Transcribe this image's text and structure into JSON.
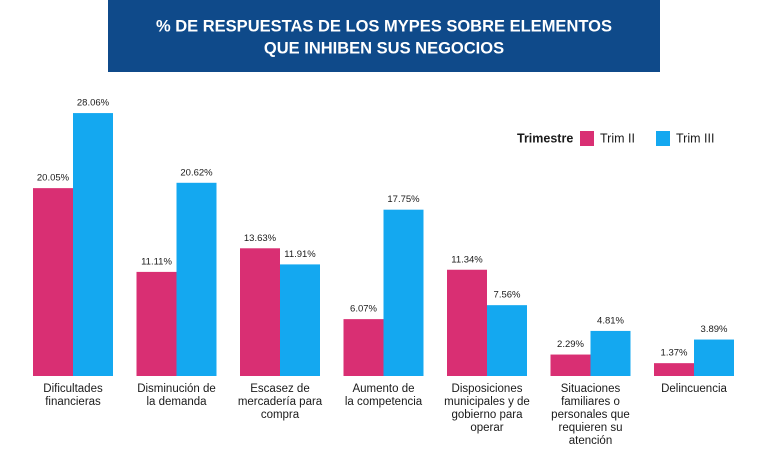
{
  "chart_data": {
    "type": "bar",
    "title": [
      "% DE RESPUESTAS DE LOS MYPES SOBRE ELEMENTOS",
      "QUE INHIBEN SUS NEGOCIOS"
    ],
    "legend_title": "Trimestre",
    "categories": [
      [
        "Dificultades",
        "financieras"
      ],
      [
        "Disminución de",
        "la demanda"
      ],
      [
        "Escasez de",
        "mercadería para",
        "compra"
      ],
      [
        "Aumento de",
        "la competencia"
      ],
      [
        "Disposiciones",
        "municipales y de",
        "gobierno para",
        "operar"
      ],
      [
        "Situaciones",
        "familiares o",
        "personales que",
        "requieren su",
        "atención"
      ],
      [
        "Delincuencia"
      ]
    ],
    "series": [
      {
        "name": "Trim II",
        "color": "#d92f73",
        "values": [
          20.05,
          11.11,
          13.63,
          6.07,
          11.34,
          2.29,
          1.37
        ],
        "value_labels": [
          "20.05%",
          "11.11%",
          "13.63%",
          "6.07%",
          "11.34%",
          "2.29%",
          "1.37%"
        ]
      },
      {
        "name": "Trim III",
        "color": "#14a8f0",
        "values": [
          28.06,
          20.62,
          11.91,
          17.75,
          7.56,
          4.81,
          3.89
        ],
        "value_labels": [
          "28.06%",
          "20.62%",
          "11.91%",
          "17.75%",
          "7.56%",
          "4.81%",
          "3.89%"
        ]
      }
    ],
    "legend": "top-right"
  }
}
